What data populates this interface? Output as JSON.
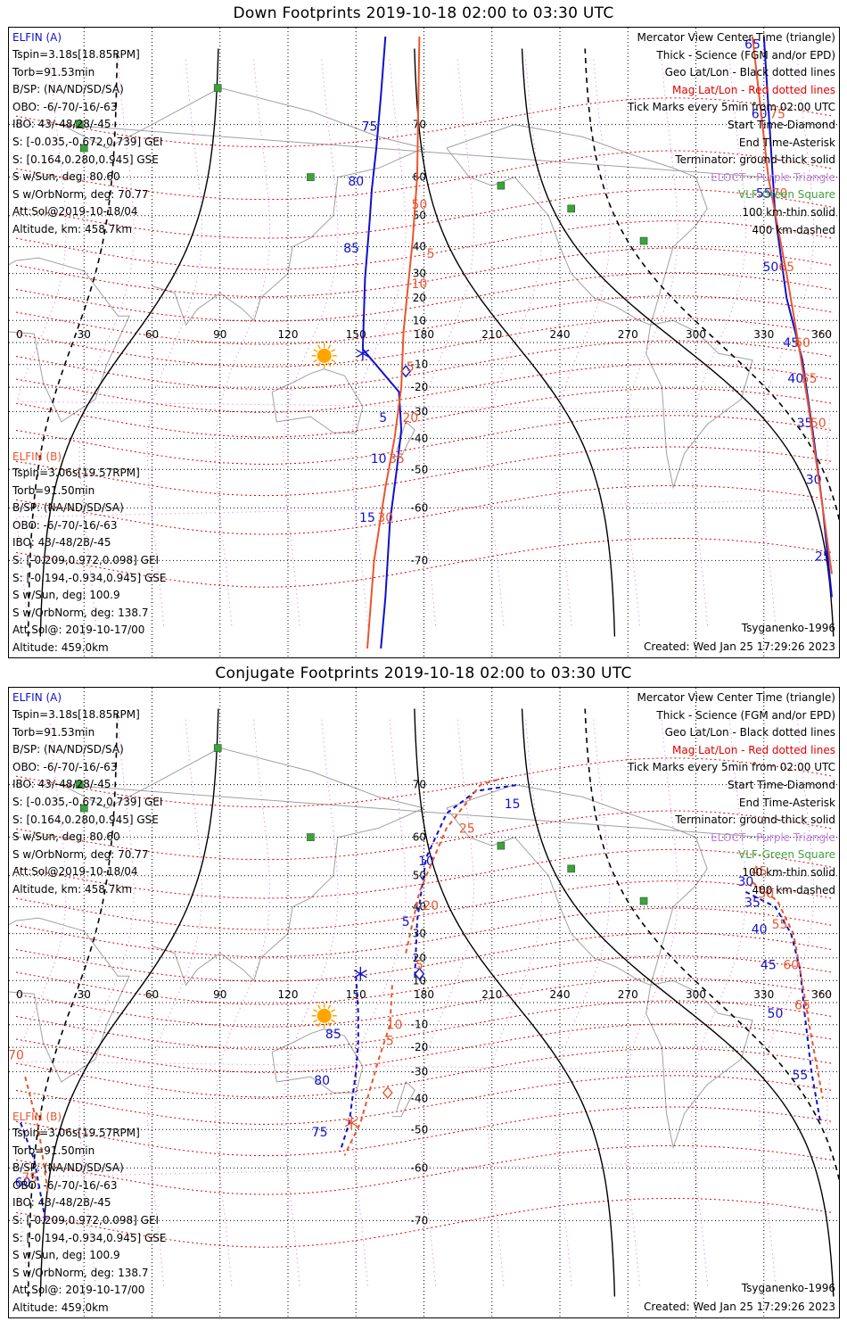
{
  "colors": {
    "elfin_a": "#1010cc",
    "elfin_b": "#e8552f",
    "geo_grid": "#000000",
    "mag_grid": "#e00000",
    "mag_meridians": "#d070d0",
    "coastline": "#a0a0a0",
    "terminator": "#000000",
    "sun": "#ffa500",
    "vlf": "#40a040"
  },
  "panels": [
    {
      "title": "Down Footprints 2019-10-18 02:00 to 03:30 UTC",
      "elfin_a": {
        "label": "ELFIN (A)",
        "lines": [
          "Tspin=3.18s[18.85RPM]",
          "Torb=91.53min",
          "B/SP: (NA/ND/SD/SA)",
          "OBO: -6/-70/-16/-63",
          "IBO: 43/-48/28/-45",
          "S: [-0.035,-0.672,0.739] GEI",
          "S: [0.164,0.280,0.945] GSE",
          "S w/Sun, deg: 80.60",
          "S w/OrbNorm, deg: 70.77",
          "Att.Sol@2019-10-18/04",
          "Altitude, km: 458.7km"
        ]
      },
      "elfin_b": {
        "label": "ELFIN (B)",
        "lines": [
          "Tspin=3.06s[19.57RPM]",
          "Torb=91.50min",
          "B/SP: (NA/ND/SD/SA)",
          "OBO: -6/-70/-16/-63",
          "IBO: 43/-48/28/-45",
          "S: [-0.209,0.972,0.098] GEI",
          "S: [-0.194,-0.934,0.945] GSE",
          "S w/Sun, deg: 100.9",
          "S w/OrbNorm, deg: 138.7",
          "Att.Sol@: 2019-10-17/00",
          "Altitude: 459.0km"
        ]
      },
      "legend": [
        {
          "text": "Mercator View Center Time (triangle)",
          "cls": ""
        },
        {
          "text": "Thick - Science (FGM and/or EPD)",
          "cls": ""
        },
        {
          "text": "Geo Lat/Lon - Black dotted lines",
          "cls": ""
        },
        {
          "text": "Mag Lat/Lon - Red dotted lines",
          "cls": "magred"
        },
        {
          "text": "Tick Marks every 5min from 02:00 UTC",
          "cls": ""
        },
        {
          "text": "Start Time-Diamond",
          "cls": ""
        },
        {
          "text": "End Time-Asterisk",
          "cls": ""
        },
        {
          "text": "Terminator: ground-thick solid",
          "cls": ""
        },
        {
          "text": "ELOCT - Purple Triangle",
          "cls": "purple"
        },
        {
          "text": "VLF-Green Square",
          "cls": "green"
        },
        {
          "text": "100 km-thin solid",
          "cls": ""
        },
        {
          "text": "400 km-dashed",
          "cls": ""
        }
      ],
      "model": "Tsyganenko-1996",
      "created": "Created: Wed Jan 25 17:29:26 2023"
    },
    {
      "title": "Conjugate Footprints 2019-10-18 02:00 to 03:30 UTC",
      "elfin_a": {
        "label": "ELFIN (A)",
        "lines": [
          "Tspin=3.18s[18.85RPM]",
          "Torb=91.53min",
          "B/SP: (NA/ND/SD/SA)",
          "OBO: -6/-70/-16/-63",
          "IBO: 43/-48/28/-45",
          "S: [-0.035,-0.672,0.739] GEI",
          "S: [0.164,0.280,0.945] GSE",
          "S w/Sun, deg: 80.60",
          "S w/OrbNorm, deg: 70.77",
          "Att.Sol@2019-10-18/04",
          "Altitude, km: 458.7km"
        ]
      },
      "elfin_b": {
        "label": "ELFIN (B)",
        "lines": [
          "Tspin=3.06s[19.57RPM]",
          "Torb=91.50min",
          "B/SP: (NA/ND/SD/SA)",
          "OBO: -6/-70/-16/-63",
          "IBO: 43/-48/28/-45",
          "S: [-0.209,0.972,0.098] GEI",
          "S: [-0.194,-0.934,0.945] GSE",
          "S w/Sun, deg: 100.9",
          "S w/OrbNorm, deg: 138.7",
          "Att.Sol@: 2019-10-17/00",
          "Altitude: 459.0km"
        ]
      },
      "legend": [
        {
          "text": "Mercator View Center Time (triangle)",
          "cls": ""
        },
        {
          "text": "Thick - Science (FGM and/or EPD)",
          "cls": ""
        },
        {
          "text": "Geo Lat/Lon - Black dotted lines",
          "cls": ""
        },
        {
          "text": "Mag Lat/Lon - Red dotted lines",
          "cls": "magred"
        },
        {
          "text": "Tick Marks every 5min from 02:00 UTC",
          "cls": ""
        },
        {
          "text": "Start Time-Diamond",
          "cls": ""
        },
        {
          "text": "End Time-Asterisk",
          "cls": ""
        },
        {
          "text": "Terminator: ground-thick solid",
          "cls": ""
        },
        {
          "text": "ELOCT - Purple Triangle",
          "cls": "purple"
        },
        {
          "text": "VLF-Green Square",
          "cls": "green"
        },
        {
          "text": "100 km-thin solid",
          "cls": ""
        },
        {
          "text": "400 km-dashed",
          "cls": ""
        }
      ],
      "model": "Tsyganenko-1996",
      "created": "Created: Wed Jan 25 17:29:26 2023"
    }
  ],
  "chart_data": [
    {
      "type": "scatter",
      "title": "Down Footprints 2019-10-18 02:00 to 03:30 UTC",
      "projection": "mercator",
      "xlim": [
        0,
        360
      ],
      "ylim": [
        -80,
        80
      ],
      "x_ticks": [
        0,
        30,
        60,
        90,
        120,
        150,
        180,
        210,
        240,
        270,
        300,
        330,
        360
      ],
      "y_ticks": [
        -70,
        -60,
        -50,
        -40,
        -30,
        -20,
        -10,
        10,
        20,
        30,
        40,
        50,
        60,
        70
      ],
      "grid": true,
      "sun": [
        136,
        -6
      ],
      "vlf_stations": [
        [
          89,
          75
        ],
        [
          28,
          70
        ],
        [
          30,
          66
        ],
        [
          130,
          60
        ],
        [
          214,
          58
        ],
        [
          245,
          52
        ],
        [
          277,
          42
        ]
      ],
      "series": [
        {
          "name": "ELFIN (A)",
          "track": [
            [
              163,
              80
            ],
            [
              161,
              74
            ],
            [
              159,
              66
            ],
            [
              157,
              57
            ],
            [
              156,
              48
            ],
            [
              154,
              28
            ],
            [
              153,
              -3
            ],
            [
              169,
              -22
            ],
            [
              170,
              -37
            ],
            [
              168,
              -50
            ],
            [
              165,
              -63
            ],
            [
              163,
              -75
            ],
            [
              161,
              -80
            ]
          ],
          "labels": [
            {
              "t": "75",
              "lon": 156,
              "lat": 69
            },
            {
              "t": "80",
              "lon": 150,
              "lat": 58
            },
            {
              "t": "85",
              "lon": 148,
              "lat": 38
            },
            {
              "t": "5",
              "lon": 162,
              "lat": -34
            },
            {
              "t": "10",
              "lon": 160,
              "lat": -48
            },
            {
              "t": "15",
              "lon": 155,
              "lat": -63
            }
          ],
          "start": [
            172,
            -13
          ],
          "end": [
            153,
            -5
          ]
        },
        {
          "name": "ELFIN (B)",
          "track": [
            [
              178,
              80
            ],
            [
              177,
              60
            ],
            [
              175,
              42
            ],
            [
              173,
              25
            ],
            [
              171,
              5
            ],
            [
              170,
              -20
            ],
            [
              167,
              -40
            ],
            [
              163,
              -55
            ],
            [
              158,
              -70
            ],
            [
              155,
              -80
            ]
          ],
          "labels": [
            {
              "t": "50",
              "lon": 178,
              "lat": 52
            },
            {
              "t": "5",
              "lon": 183,
              "lat": 36
            },
            {
              "t": "10",
              "lon": 178,
              "lat": 24
            },
            {
              "t": "5",
              "lon": 174,
              "lat": -13
            },
            {
              "t": "20",
              "lon": 174,
              "lat": -34
            },
            {
              "t": "35",
              "lon": 168,
              "lat": -48
            },
            {
              "t": "30",
              "lon": 163,
              "lat": -63
            }
          ]
        },
        {
          "name": "ELFIN (A) east",
          "track": [
            [
              330,
              80
            ],
            [
              335,
              50
            ],
            [
              340,
              20
            ],
            [
              347,
              -8
            ],
            [
              352,
              -40
            ],
            [
              356,
              -60
            ],
            [
              360,
              -75
            ]
          ],
          "labels": [
            {
              "t": "65",
              "lon": 325,
              "lat": 79
            },
            {
              "t": "60",
              "lon": 328,
              "lat": 71
            },
            {
              "t": "55",
              "lon": 330,
              "lat": 55
            },
            {
              "t": "50",
              "lon": 333,
              "lat": 31
            },
            {
              "t": "45",
              "lon": 342,
              "lat": -2
            },
            {
              "t": "40",
              "lon": 344,
              "lat": -18
            },
            {
              "t": "35",
              "lon": 348,
              "lat": -36
            },
            {
              "t": "30",
              "lon": 352,
              "lat": -54
            },
            {
              "t": "25",
              "lon": 356,
              "lat": -70
            }
          ]
        },
        {
          "name": "ELFIN (B) east",
          "track": [
            [
              325,
              80
            ],
            [
              332,
              60
            ],
            [
              340,
              30
            ],
            [
              346,
              -5
            ],
            [
              350,
              -30
            ],
            [
              356,
              -60
            ],
            [
              360,
              -72
            ]
          ],
          "labels": [
            {
              "t": "75",
              "lon": 336,
              "lat": 71
            },
            {
              "t": "70",
              "lon": 337,
              "lat": 55
            },
            {
              "t": "65",
              "lon": 340,
              "lat": 31
            },
            {
              "t": "60",
              "lon": 347,
              "lat": -2
            },
            {
              "t": "55",
              "lon": 350,
              "lat": -18
            },
            {
              "t": "50",
              "lon": 354,
              "lat": -36
            }
          ]
        }
      ]
    },
    {
      "type": "scatter",
      "title": "Conjugate Footprints 2019-10-18 02:00 to 03:30 UTC",
      "projection": "mercator",
      "xlim": [
        0,
        360
      ],
      "ylim": [
        -80,
        80
      ],
      "x_ticks": [
        0,
        30,
        60,
        90,
        120,
        150,
        180,
        210,
        240,
        270,
        300,
        330,
        360
      ],
      "y_ticks": [
        -70,
        -60,
        -50,
        -40,
        -30,
        -20,
        -10,
        10,
        20,
        30,
        40,
        50,
        60,
        70
      ],
      "grid": true,
      "sun": [
        136,
        -6
      ],
      "vlf_stations": [
        [
          89,
          75
        ],
        [
          28,
          70
        ],
        [
          30,
          66
        ],
        [
          130,
          60
        ],
        [
          214,
          58
        ],
        [
          245,
          52
        ],
        [
          277,
          42
        ]
      ],
      "series": [
        {
          "name": "ELFIN (A)",
          "track": [
            [
              150,
              12
            ],
            [
              151,
              -5
            ],
            [
              151,
              -18
            ],
            [
              150,
              -30
            ],
            [
              147,
              -48
            ],
            [
              143,
              -56
            ]
          ],
          "labels": [
            {
              "t": "85",
              "lon": 140,
              "lat": -16
            },
            {
              "t": "80",
              "lon": 135,
              "lat": -35
            },
            {
              "t": "75",
              "lon": 134,
              "lat": -52
            }
          ],
          "start": [
            178,
            13
          ],
          "end": [
            152,
            13
          ]
        },
        {
          "name": "ELFIN (A) north",
          "track": [
            [
              176,
              12
            ],
            [
              177,
              35
            ],
            [
              181,
              55
            ],
            [
              190,
              65
            ],
            [
              203,
              69
            ],
            [
              222,
              70
            ]
          ],
          "labels": [
            {
              "t": "5",
              "lon": 172,
              "lat": 33
            },
            {
              "t": "10",
              "lon": 181,
              "lat": 53
            },
            {
              "t": "15",
              "lon": 219,
              "lat": 66
            }
          ]
        },
        {
          "name": "ELFIN (B)",
          "track": [
            [
              166,
              8
            ],
            [
              165,
              -10
            ],
            [
              160,
              -25
            ],
            [
              152,
              -48
            ],
            [
              145,
              -57
            ]
          ],
          "labels": [
            {
              "t": "5",
              "lon": 178,
              "lat": 15
            },
            {
              "t": "10",
              "lon": 167,
              "lat": -12
            },
            {
              "t": "5",
              "lon": 165,
              "lat": -19
            }
          ],
          "start": [
            164,
            -38
          ],
          "end": [
            148,
            -48
          ]
        },
        {
          "name": "ELFIN (B) north",
          "track": [
            [
              172,
              22
            ],
            [
              178,
              45
            ],
            [
              190,
              62
            ],
            [
              205,
              70
            ],
            [
              215,
              71
            ]
          ],
          "labels": [
            {
              "t": "20",
              "lon": 183,
              "lat": 39
            },
            {
              "t": "25",
              "lon": 199,
              "lat": 61
            }
          ]
        },
        {
          "name": "ELFIN (A) east",
          "track": [
            [
              322,
              45
            ],
            [
              335,
              40
            ],
            [
              342,
              30
            ],
            [
              346,
              15
            ],
            [
              348,
              -5
            ],
            [
              351,
              -30
            ],
            [
              355,
              -48
            ]
          ],
          "labels": [
            {
              "t": "30",
              "lon": 322,
              "lat": 47
            },
            {
              "t": "35",
              "lon": 325,
              "lat": 40
            },
            {
              "t": "40",
              "lon": 328,
              "lat": 30
            },
            {
              "t": "45",
              "lon": 332,
              "lat": 15
            },
            {
              "t": "50",
              "lon": 335,
              "lat": -7
            },
            {
              "t": "55",
              "lon": 346,
              "lat": -33
            }
          ]
        },
        {
          "name": "ELFIN (B) east",
          "track": [
            [
              325,
              48
            ],
            [
              336,
              42
            ],
            [
              343,
              30
            ],
            [
              346,
              15
            ],
            [
              350,
              -10
            ],
            [
              356,
              -40
            ]
          ],
          "labels": [
            {
              "t": "45",
              "lon": 328,
              "lat": 50
            },
            {
              "t": "50",
              "lon": 331,
              "lat": 43
            },
            {
              "t": "55",
              "lon": 337,
              "lat": 32
            },
            {
              "t": "60",
              "lon": 342,
              "lat": 15
            },
            {
              "t": "65",
              "lon": 347,
              "lat": -3
            }
          ]
        },
        {
          "name": "ELFIN (A) west",
          "track": [
            [
              2,
              -48
            ],
            [
              8,
              -58
            ],
            [
              13,
              -70
            ]
          ],
          "labels": [
            {
              "t": "60",
              "lon": 3,
              "lat": -64
            }
          ]
        },
        {
          "name": "ELFIN (B) west",
          "track": [
            [
              4,
              -32
            ],
            [
              10,
              -50
            ],
            [
              14,
              -65
            ]
          ],
          "labels": [
            {
              "t": "70",
              "lon": 0,
              "lat": -25
            },
            {
              "t": "75",
              "lon": 6,
              "lat": -63
            }
          ]
        }
      ]
    }
  ]
}
